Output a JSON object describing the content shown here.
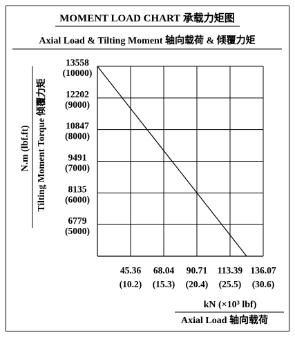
{
  "chart_data": {
    "type": "line",
    "title": "MOMENT LOAD CHART 承载力矩图",
    "subtitle": "Axial Load & Tilting Moment 轴向载荷 & 倾覆力矩",
    "xlabel_units": "kN (×10³ lbf)",
    "xlabel": "Axial Load 轴向载荷",
    "ylabel_units": "N.m (lbf.ft)",
    "ylabel": "Tilting Moment Torque 倾覆力矩",
    "x_ticks": [
      {
        "value": 45.36,
        "alt": "(10.2)"
      },
      {
        "value": 68.04,
        "alt": "(15.3)"
      },
      {
        "value": 90.71,
        "alt": "(20.4)"
      },
      {
        "value": 113.39,
        "alt": "(25.5)"
      },
      {
        "value": 136.07,
        "alt": "(30.6)"
      }
    ],
    "y_ticks": [
      {
        "value": 13558,
        "alt": "(10000)"
      },
      {
        "value": 12202,
        "alt": "(9000)"
      },
      {
        "value": 10847,
        "alt": "(8000)"
      },
      {
        "value": 9491,
        "alt": "(7000)"
      },
      {
        "value": 8135,
        "alt": "(6000)"
      },
      {
        "value": 6779,
        "alt": "(5000)"
      }
    ],
    "xlim": [
      22.68,
      136.07
    ],
    "ylim": [
      5423,
      13558
    ],
    "grid": true,
    "series": [
      {
        "color": "#000000",
        "points": [
          {
            "x": 22.68,
            "y": 13558
          },
          {
            "x": 90.71,
            "y": 8135
          },
          {
            "x": 124.73,
            "y": 5423
          }
        ]
      }
    ]
  }
}
